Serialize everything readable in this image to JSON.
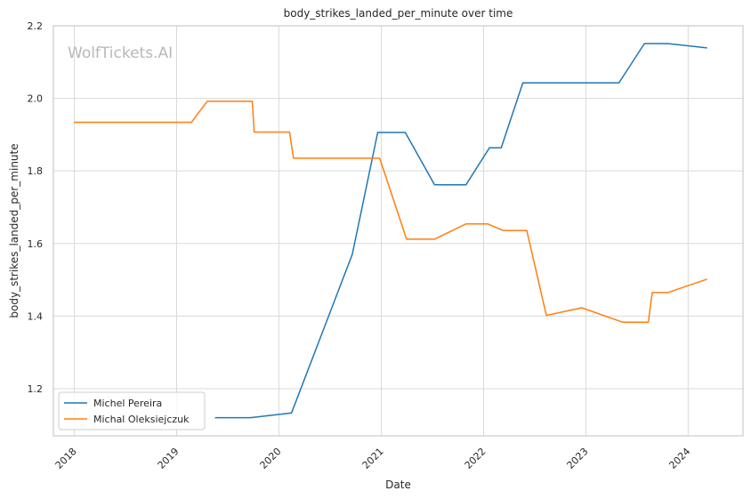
{
  "chart_data": {
    "type": "line",
    "title": "body_strikes_landed_per_minute over time",
    "xlabel": "Date",
    "ylabel": "body_strikes_landed_per_minute",
    "watermark": "WolfTickets.AI",
    "xlim": [
      "2017-10-18",
      "2024-07-15"
    ],
    "ylim": [
      1.07,
      2.2
    ],
    "x_ticks": [
      "2018",
      "2019",
      "2020",
      "2021",
      "2022",
      "2023",
      "2024"
    ],
    "y_ticks": [
      "1.2",
      "1.4",
      "1.6",
      "1.8",
      "2.0",
      "2.2"
    ],
    "grid": true,
    "legend_position": "lower-left",
    "series": [
      {
        "name": "Michel Pereira",
        "color": "#1f77b4",
        "points": [
          {
            "x": "2019-05-18",
            "y": 1.12
          },
          {
            "x": "2019-09-21",
            "y": 1.12
          },
          {
            "x": "2020-02-15",
            "y": 1.133
          },
          {
            "x": "2020-09-19",
            "y": 1.57
          },
          {
            "x": "2020-12-19",
            "y": 1.906
          },
          {
            "x": "2021-03-27",
            "y": 1.906
          },
          {
            "x": "2021-07-10",
            "y": 1.762
          },
          {
            "x": "2021-10-30",
            "y": 1.762
          },
          {
            "x": "2022-01-22",
            "y": 1.864
          },
          {
            "x": "2022-03-05",
            "y": 1.864
          },
          {
            "x": "2022-05-21",
            "y": 2.043
          },
          {
            "x": "2023-04-29",
            "y": 2.043
          },
          {
            "x": "2023-07-29",
            "y": 2.151
          },
          {
            "x": "2023-10-21",
            "y": 2.151
          },
          {
            "x": "2024-03-09",
            "y": 2.139
          }
        ]
      },
      {
        "name": "Michal Oleksiejczuk",
        "color": "#ff7f0e",
        "points": [
          {
            "x": "2017-12-30",
            "y": 1.934
          },
          {
            "x": "2019-02-23",
            "y": 1.934
          },
          {
            "x": "2019-04-20",
            "y": 1.992
          },
          {
            "x": "2019-09-28",
            "y": 1.992
          },
          {
            "x": "2019-10-05",
            "y": 1.907
          },
          {
            "x": "2020-02-08",
            "y": 1.907
          },
          {
            "x": "2020-02-22",
            "y": 1.835
          },
          {
            "x": "2020-12-26",
            "y": 1.835
          },
          {
            "x": "2021-04-01",
            "y": 1.612
          },
          {
            "x": "2021-07-10",
            "y": 1.612
          },
          {
            "x": "2021-10-30",
            "y": 1.654
          },
          {
            "x": "2022-01-15",
            "y": 1.654
          },
          {
            "x": "2022-03-12",
            "y": 1.636
          },
          {
            "x": "2022-06-04",
            "y": 1.636
          },
          {
            "x": "2022-08-13",
            "y": 1.402
          },
          {
            "x": "2022-12-17",
            "y": 1.423
          },
          {
            "x": "2023-05-13",
            "y": 1.383
          },
          {
            "x": "2023-08-12",
            "y": 1.383
          },
          {
            "x": "2023-08-26",
            "y": 1.465
          },
          {
            "x": "2023-10-21",
            "y": 1.465
          },
          {
            "x": "2024-03-09",
            "y": 1.502
          }
        ]
      }
    ]
  }
}
